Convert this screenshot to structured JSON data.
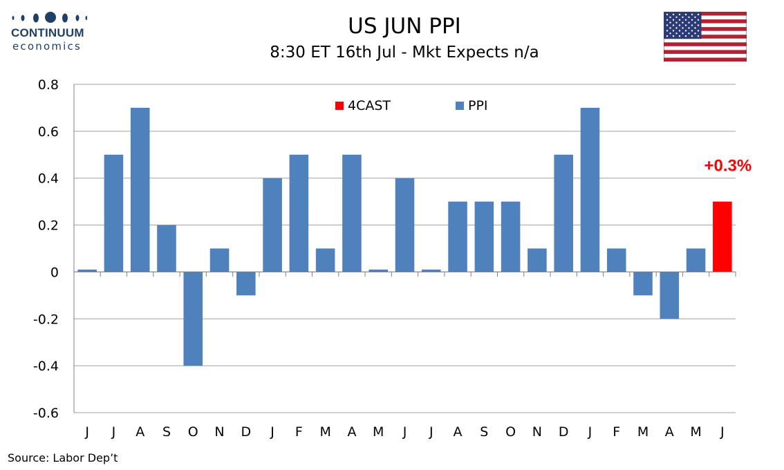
{
  "header": {
    "logo_name": "CONTINUUM",
    "logo_sub": "economics",
    "flag_icon": "us-flag-icon"
  },
  "footer": {
    "source": "Source: Labor Dep’t"
  },
  "colors": {
    "ppi": "#4f81bd",
    "forecast": "#ff0000",
    "grid": "#a0a0a0",
    "brand": "#1f3f66"
  },
  "chart_data": {
    "type": "bar",
    "title": "US JUN PPI",
    "subtitle": "8:30 ET 16th Jul - Mkt Expects n/a",
    "xlabel": "",
    "ylabel": "",
    "ylim": [
      -0.6,
      0.8
    ],
    "yticks": [
      "0.8",
      "0.6",
      "0.4",
      "0.2",
      "0",
      "-0.2",
      "-0.4",
      "-0.6"
    ],
    "ytick_values": [
      0.8,
      0.6,
      0.4,
      0.2,
      0,
      -0.2,
      -0.4,
      -0.6
    ],
    "grid": true,
    "legend_position": "top-center",
    "categories": [
      "J",
      "J",
      "A",
      "S",
      "O",
      "N",
      "D",
      "J",
      "F",
      "M",
      "A",
      "M",
      "J",
      "J",
      "A",
      "S",
      "O",
      "N",
      "D",
      "J",
      "F",
      "M",
      "A",
      "M",
      "J"
    ],
    "series": [
      {
        "name": "4CAST",
        "color": "#ff0000",
        "values": [
          null,
          null,
          null,
          null,
          null,
          null,
          null,
          null,
          null,
          null,
          null,
          null,
          null,
          null,
          null,
          null,
          null,
          null,
          null,
          null,
          null,
          null,
          null,
          null,
          0.3
        ]
      },
      {
        "name": "PPI",
        "color": "#4f81bd",
        "values": [
          0.01,
          0.5,
          0.7,
          0.2,
          -0.4,
          0.1,
          -0.1,
          0.4,
          0.5,
          0.1,
          0.5,
          0.01,
          0.4,
          0.01,
          0.3,
          0.3,
          0.3,
          0.1,
          0.5,
          0.7,
          0.1,
          -0.1,
          -0.2,
          0.1,
          null
        ]
      }
    ],
    "annotations": [
      {
        "text": "+0.3%",
        "category_index": 24,
        "color": "#ff0000"
      }
    ]
  }
}
